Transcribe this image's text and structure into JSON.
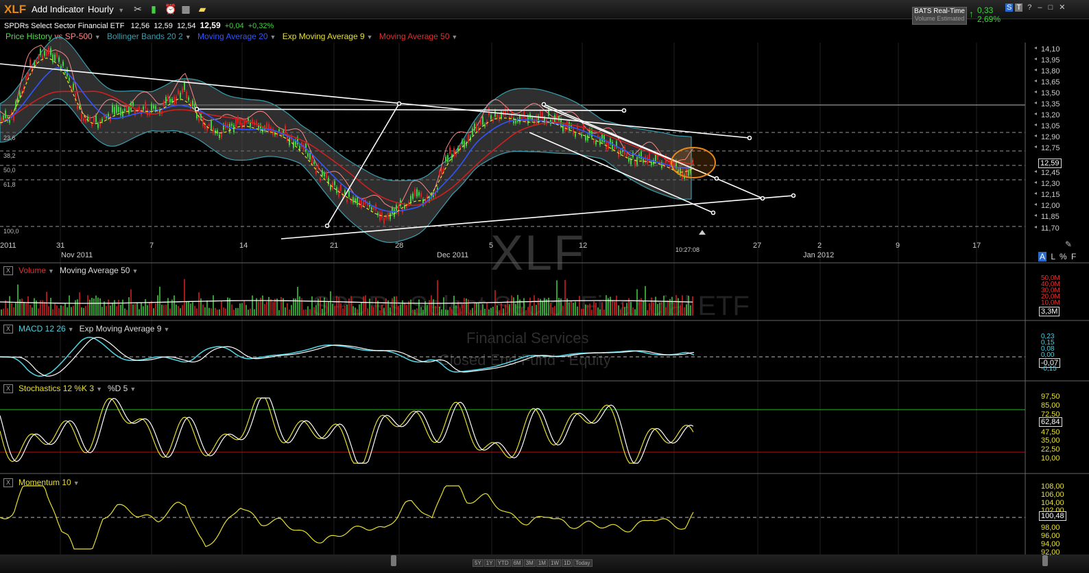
{
  "toolbar": {
    "symbol": "XLF",
    "add_indicator": "Add Indicator",
    "interval": "Hourly",
    "icons": [
      "tools-icon",
      "bar-chart-icon",
      "alarm-clock-icon",
      "calendar-icon",
      "notes-icon"
    ]
  },
  "quote": {
    "name": "SPDRs Select Sector Financial ETF",
    "open": "12,56",
    "high": "12,59",
    "low": "12,54",
    "last": "12,59",
    "change": "+0,04",
    "change_pct": "+0,32%"
  },
  "legend": [
    {
      "label": "Price History",
      "color": "#4de04d"
    },
    {
      "label": "vs SP-500",
      "color": "#ff8888"
    },
    {
      "label": "Bollinger Bands 20 2",
      "color": "#3a9fb0"
    },
    {
      "label": "Moving Average 20",
      "color": "#3355ff"
    },
    {
      "label": "Exp Moving Average 9",
      "color": "#e8e030"
    },
    {
      "label": "Moving Average 50",
      "color": "#e03030"
    }
  ],
  "realtime": {
    "title": "BATS Real-Time",
    "sub": "Volume Estimated",
    "change": "0,33",
    "change_pct": "2,69%"
  },
  "window_buttons": [
    "S",
    "T",
    "?",
    "–",
    "□",
    "✕"
  ],
  "price_axis": [
    "14,10",
    "13,95",
    "13,80",
    "13,65",
    "13,50",
    "13,35",
    "13,20",
    "13,05",
    "12,90",
    "12,75",
    "12,59",
    "12,45",
    "12,30",
    "12,15",
    "12,00",
    "11,85",
    "11,70"
  ],
  "current_price": "12,59",
  "fib_labels": [
    "23,6",
    "38,2",
    "50,0",
    "61,8",
    "100,0"
  ],
  "date_axis": [
    {
      "t": "2011"
    },
    {
      "t": "31"
    },
    {
      "t": "Nov 2011"
    },
    {
      "t": "7"
    },
    {
      "t": "14"
    },
    {
      "t": "21"
    },
    {
      "t": "28"
    },
    {
      "t": "Dec 2011"
    },
    {
      "t": "5"
    },
    {
      "t": "12"
    },
    {
      "t": "10:27:08"
    },
    {
      "t": "27"
    },
    {
      "t": "2"
    },
    {
      "t": "Jan 2012"
    },
    {
      "t": "9"
    },
    {
      "t": "17"
    }
  ],
  "watermark": {
    "symbol": "XLF",
    "name": "SPDRs Select Sector Financial ETF",
    "sector": "Financial Services",
    "type": "Closed End Fund - Equity"
  },
  "scale_buttons": [
    "A",
    "L",
    "%",
    "F"
  ],
  "volume": {
    "title": "Volume",
    "ma": "Moving Average 50",
    "axis": [
      "50,0M",
      "40,0M",
      "30,0M",
      "20,0M",
      "10,0M"
    ],
    "current": "3,3M"
  },
  "macd": {
    "title": "MACD 12 26",
    "ema": "Exp Moving Average 9",
    "axis": [
      "0,23",
      "0,15",
      "0,08",
      "0,00",
      "-0,07",
      "-0,15"
    ],
    "current": "-0,07"
  },
  "stoch": {
    "title": "Stochastics 12 %K 3",
    "d": "%D 5",
    "axis": [
      "97,50",
      "85,00",
      "72,50",
      "62,84",
      "47,50",
      "35,00",
      "22,50",
      "10,00"
    ],
    "current": "62,84"
  },
  "momentum": {
    "title": "Momentum 10",
    "axis": [
      "108,00",
      "106,00",
      "104,00",
      "102,00",
      "100,48",
      "98,00",
      "96,00",
      "94,00",
      "92,00"
    ],
    "current": "100,48"
  },
  "ranges": [
    "5Y",
    "1Y",
    "YTD",
    "6M",
    "3M",
    "1M",
    "1W",
    "1D",
    "Today"
  ],
  "colors": {
    "up": "#3fd43f",
    "down": "#e02020",
    "accent": "#e88a1a"
  }
}
